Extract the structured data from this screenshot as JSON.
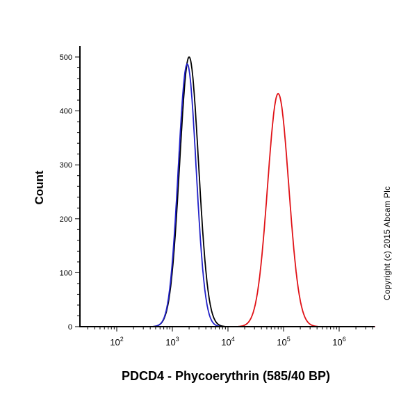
{
  "figure": {
    "xlabel": "PDCD4 - Phycoerythrin (585/40 BP)",
    "ylabel": "Count",
    "copyright": "Copyright (c) 2015 Abcam Plc"
  },
  "chart_data": {
    "type": "line",
    "chart_kind": "flow_cytometry_histogram",
    "xlabel": "PDCD4 - Phycoerythrin (585/40 BP)",
    "ylabel": "Count",
    "x_scale": "log10",
    "x_major_tick_exponents": [
      2,
      3,
      4,
      5,
      6
    ],
    "x_domain_log10": [
      1.34,
      6.64
    ],
    "ylim": [
      0,
      515
    ],
    "y_major_ticks": [
      0,
      100,
      200,
      300,
      400,
      500
    ],
    "y_minor_step": 20,
    "grid": false,
    "legend": null,
    "series": [
      {
        "name": "black-curve-control",
        "color": "#000000",
        "peak_x": 2000,
        "peak_count": 500,
        "sigma_log10": 0.17
      },
      {
        "name": "blue-curve-control",
        "color": "#2121c8",
        "peak_x": 1850,
        "peak_count": 487,
        "sigma_log10": 0.16
      },
      {
        "name": "red-curve-pdcd4-pe",
        "color": "#e01217",
        "peak_x": 80000,
        "peak_count": 432,
        "sigma_log10": 0.19
      }
    ],
    "annotations": [
      "Copyright (c) 2015 Abcam Plc"
    ]
  }
}
